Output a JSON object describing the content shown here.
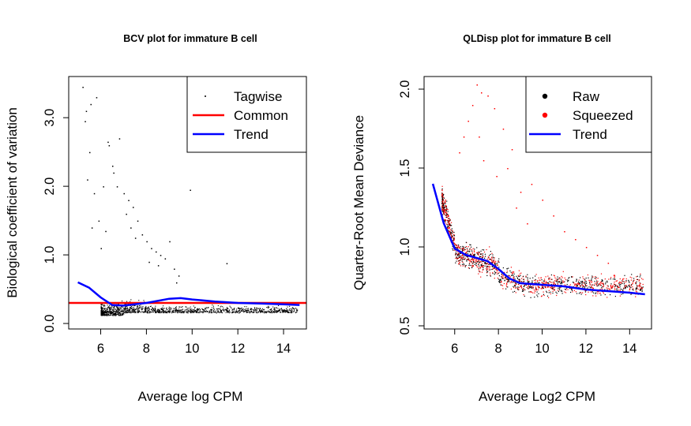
{
  "chart_data": [
    {
      "type": "scatter",
      "title": "BCV plot for immature B cell",
      "xlabel": "Average log CPM",
      "ylabel": "Biological coefficient of variation",
      "xlim": [
        4.6,
        15.0
      ],
      "ylim": [
        -0.08,
        3.6
      ],
      "xticks": [
        "6",
        "8",
        "10",
        "12",
        "14"
      ],
      "xtick_values": [
        6,
        8,
        10,
        12,
        14
      ],
      "yticks": [
        "0.0",
        "1.0",
        "2.0",
        "3.0"
      ],
      "ytick_values": [
        0,
        1,
        2,
        3
      ],
      "legend": {
        "position": "top-right",
        "items": [
          {
            "label": "Tagwise",
            "kind": "point",
            "color": "#000000"
          },
          {
            "label": "Common",
            "kind": "line",
            "color": "#ff0000"
          },
          {
            "label": "Trend",
            "kind": "line",
            "color": "#0000ff"
          }
        ]
      },
      "series": [
        {
          "name": "Common",
          "kind": "hline",
          "color": "#ff0000",
          "y": 0.3
        },
        {
          "name": "Trend",
          "kind": "line",
          "color": "#0000ff",
          "x": [
            5.0,
            5.5,
            6.0,
            6.5,
            7.0,
            8.0,
            9.0,
            9.5,
            10.0,
            11.0,
            12.0,
            13.0,
            14.0,
            14.7
          ],
          "y": [
            0.6,
            0.52,
            0.38,
            0.27,
            0.26,
            0.3,
            0.36,
            0.37,
            0.35,
            0.32,
            0.3,
            0.29,
            0.28,
            0.27
          ]
        },
        {
          "name": "Tagwise",
          "kind": "points",
          "color": "#000000",
          "x": [
            5.2,
            5.35,
            5.3,
            5.55,
            5.8,
            5.5,
            5.4,
            5.7,
            6.1,
            6.35,
            6.3,
            6.55,
            6.5,
            6.7,
            6.8,
            7.0,
            7.2,
            7.1,
            7.3,
            7.6,
            7.4,
            7.8,
            8.0,
            8.2,
            8.4,
            8.6,
            8.8,
            9.0,
            9.2,
            9.4,
            9.9,
            5.9,
            5.6,
            6.0,
            6.2,
            7.5,
            8.1,
            8.5,
            9.3,
            11.5
          ],
          "y": [
            3.45,
            3.1,
            2.95,
            3.2,
            3.3,
            2.5,
            2.1,
            1.9,
            2.0,
            2.6,
            2.65,
            2.2,
            2.3,
            2.0,
            2.7,
            1.9,
            1.8,
            1.6,
            1.4,
            1.5,
            1.7,
            1.3,
            1.2,
            1.1,
            1.05,
            1.0,
            0.95,
            1.2,
            0.8,
            0.7,
            1.95,
            1.5,
            1.4,
            1.1,
            1.35,
            1.25,
            0.9,
            0.85,
            0.6,
            0.88
          ]
        }
      ]
    },
    {
      "type": "scatter",
      "title": "QLDisp plot for immature B cell",
      "xlabel": "Average Log2 CPM",
      "ylabel": "Quarter-Root Mean Deviance",
      "xlim": [
        4.6,
        15.0
      ],
      "ylim": [
        0.48,
        2.08
      ],
      "xticks": [
        "6",
        "8",
        "10",
        "12",
        "14"
      ],
      "xtick_values": [
        6,
        8,
        10,
        12,
        14
      ],
      "yticks": [
        "0.5",
        "1.0",
        "1.5",
        "2.0"
      ],
      "ytick_values": [
        0.5,
        1.0,
        1.5,
        2.0
      ],
      "legend": {
        "position": "top-right",
        "items": [
          {
            "label": "Raw",
            "kind": "point",
            "color": "#000000"
          },
          {
            "label": "Squeezed",
            "kind": "point",
            "color": "#ff0000"
          },
          {
            "label": "Trend",
            "kind": "line",
            "color": "#0000ff"
          }
        ]
      },
      "series": [
        {
          "name": "Trend",
          "kind": "line",
          "color": "#0000ff",
          "x": [
            5.0,
            5.5,
            6.0,
            6.5,
            7.0,
            7.5,
            8.0,
            8.5,
            9.0,
            10.0,
            11.0,
            12.0,
            13.0,
            14.0,
            14.7
          ],
          "y": [
            1.4,
            1.15,
            0.99,
            0.95,
            0.93,
            0.91,
            0.86,
            0.8,
            0.77,
            0.76,
            0.75,
            0.73,
            0.72,
            0.71,
            0.7
          ]
        },
        {
          "name": "Squeezed",
          "kind": "points",
          "color": "#ff0000",
          "x": [
            7.0,
            7.2,
            6.8,
            7.5,
            7.8,
            8.2,
            8.6,
            6.6,
            6.4,
            7.3,
            7.9,
            8.4,
            9.0,
            9.5,
            10.0,
            10.5,
            11.0,
            11.5,
            12.0,
            12.5,
            13.0,
            8.8,
            9.3,
            6.2,
            7.1
          ],
          "y": [
            2.03,
            1.98,
            1.9,
            1.96,
            1.88,
            1.75,
            1.62,
            1.8,
            1.7,
            1.55,
            1.45,
            1.5,
            1.35,
            1.4,
            1.3,
            1.2,
            1.1,
            1.05,
            1.0,
            0.95,
            0.9,
            1.25,
            1.15,
            1.6,
            1.7
          ]
        }
      ]
    }
  ]
}
